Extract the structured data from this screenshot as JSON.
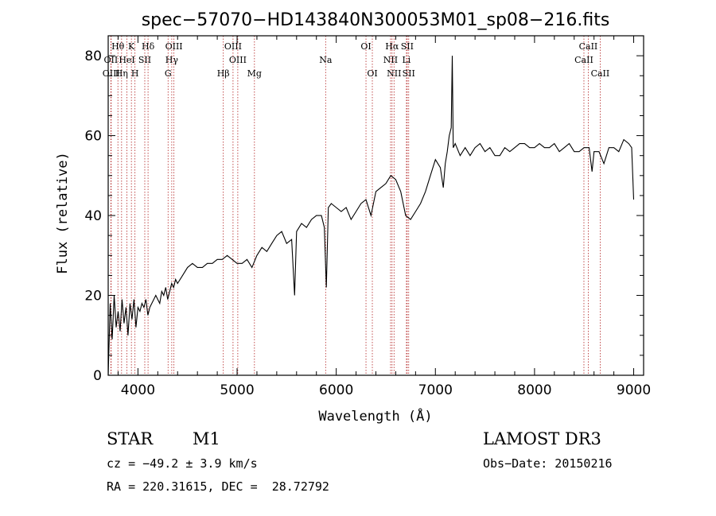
{
  "chart_data": {
    "type": "line",
    "title": "spec−57070−HD143840N300053M01_sp08−216.fits",
    "xlabel": "Wavelength (Å)",
    "ylabel": "Flux (relative)",
    "xlim": [
      3700,
      9100
    ],
    "ylim": [
      0,
      85
    ],
    "xticks": [
      4000,
      5000,
      6000,
      7000,
      8000,
      9000
    ],
    "yticks": [
      0,
      20,
      40,
      60,
      80
    ],
    "grid": false,
    "series": [
      {
        "x": [
          3700,
          3720,
          3740,
          3760,
          3780,
          3800,
          3820,
          3840,
          3860,
          3880,
          3900,
          3920,
          3940,
          3960,
          3980,
          4000,
          4020,
          4040,
          4060,
          4080,
          4100,
          4120,
          4140,
          4160,
          4180,
          4200,
          4220,
          4240,
          4260,
          4280,
          4300,
          4320,
          4340,
          4360,
          4380,
          4400,
          4450,
          4500,
          4550,
          4600,
          4650,
          4700,
          4750,
          4800,
          4850,
          4900,
          4950,
          5000,
          5050,
          5100,
          5150,
          5200,
          5250,
          5300,
          5350,
          5400,
          5450,
          5500,
          5550,
          5580,
          5600,
          5650,
          5700,
          5750,
          5800,
          5850,
          5880,
          5900,
          5920,
          5950,
          6000,
          6050,
          6100,
          6150,
          6200,
          6250,
          6300,
          6350,
          6400,
          6450,
          6500,
          6550,
          6600,
          6650,
          6700,
          6750,
          6800,
          6850,
          6900,
          6950,
          7000,
          7050,
          7080,
          7100,
          7120,
          7140,
          7160,
          7170,
          7180,
          7200,
          7250,
          7300,
          7350,
          7400,
          7450,
          7500,
          7550,
          7600,
          7650,
          7700,
          7750,
          7800,
          7850,
          7900,
          7950,
          8000,
          8050,
          8100,
          8150,
          8200,
          8250,
          8300,
          8350,
          8400,
          8450,
          8500,
          8550,
          8580,
          8600,
          8650,
          8700,
          8750,
          8800,
          8850,
          8900,
          8950,
          8980,
          9000
        ],
        "y": [
          0,
          18,
          9,
          20,
          12,
          16,
          11,
          19,
          13,
          17,
          10,
          18,
          14,
          19,
          12,
          17,
          16,
          18,
          17,
          19,
          15,
          17,
          18,
          19,
          20,
          19,
          18,
          21,
          20,
          22,
          19,
          21,
          23,
          22,
          24,
          23,
          25,
          27,
          28,
          27,
          27,
          28,
          28,
          29,
          29,
          30,
          29,
          28,
          28,
          29,
          27,
          30,
          32,
          31,
          33,
          35,
          36,
          33,
          34,
          20,
          36,
          38,
          37,
          39,
          40,
          40,
          37,
          22,
          42,
          43,
          42,
          41,
          42,
          39,
          41,
          43,
          44,
          40,
          46,
          47,
          48,
          50,
          49,
          46,
          40,
          39,
          41,
          43,
          46,
          50,
          54,
          52,
          47,
          53,
          56,
          60,
          62,
          80,
          57,
          58,
          55,
          57,
          55,
          57,
          58,
          56,
          57,
          55,
          55,
          57,
          56,
          57,
          58,
          58,
          57,
          57,
          58,
          57,
          57,
          58,
          56,
          57,
          58,
          56,
          56,
          57,
          57,
          51,
          56,
          56,
          53,
          57,
          57,
          56,
          59,
          58,
          57,
          44
        ]
      }
    ],
    "spectral_lines": [
      {
        "label": "Hθ",
        "x": 3798,
        "row": 1
      },
      {
        "label": "OII",
        "x": 3727,
        "row": 2
      },
      {
        "label": "OIII",
        "x": 3730,
        "row": 3
      },
      {
        "label": "Hη",
        "x": 3835,
        "row": 3
      },
      {
        "label": "K",
        "x": 3934,
        "row": 1
      },
      {
        "label": "HeI",
        "x": 3889,
        "row": 2
      },
      {
        "label": "H",
        "x": 3970,
        "row": 3
      },
      {
        "label": "SII",
        "x": 4069,
        "row": 2
      },
      {
        "label": "Hδ",
        "x": 4102,
        "row": 1
      },
      {
        "label": "OIII",
        "x": 4363,
        "row": 1
      },
      {
        "label": "Hγ",
        "x": 4341,
        "row": 2
      },
      {
        "label": "G",
        "x": 4304,
        "row": 3
      },
      {
        "label": "OIII",
        "x": 4959,
        "row": 1
      },
      {
        "label": "OIII",
        "x": 5007,
        "row": 2
      },
      {
        "label": "Hβ",
        "x": 4861,
        "row": 3
      },
      {
        "label": "Mg",
        "x": 5175,
        "row": 3
      },
      {
        "label": "Na",
        "x": 5893,
        "row": 2
      },
      {
        "label": "OI",
        "x": 6300,
        "row": 1
      },
      {
        "label": "OI",
        "x": 6364,
        "row": 3
      },
      {
        "label": "Hα",
        "x": 6563,
        "row": 1
      },
      {
        "label": "NII",
        "x": 6548,
        "row": 2
      },
      {
        "label": "NII",
        "x": 6583,
        "row": 3
      },
      {
        "label": "SII",
        "x": 6716,
        "row": 1
      },
      {
        "label": "Li",
        "x": 6708,
        "row": 2
      },
      {
        "label": "SII",
        "x": 6731,
        "row": 3
      },
      {
        "label": "CaII",
        "x": 8542,
        "row": 1
      },
      {
        "label": "CaII",
        "x": 8498,
        "row": 2
      },
      {
        "label": "CaII",
        "x": 8662,
        "row": 3
      }
    ],
    "line_color": "#000000",
    "marker_color": "#b22222"
  },
  "info": {
    "class": "STAR",
    "subclass": "M1",
    "survey": "LAMOST DR3",
    "cz": "cz = −49.2 ± 3.9 km/s",
    "obs_date": "Obs−Date: 20150216",
    "radec": "RA = 220.31615, DEC =  28.72792"
  }
}
